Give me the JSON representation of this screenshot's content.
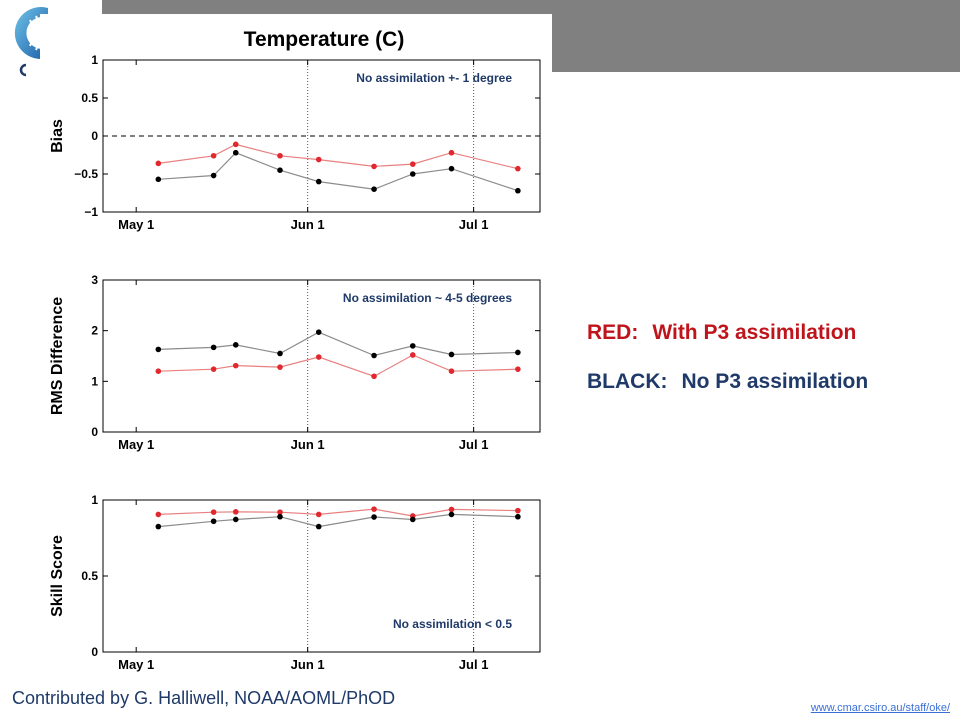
{
  "figure_title": "Temperature (C)",
  "legend": {
    "red_key": "RED:",
    "red_text": "With P3 assimilation",
    "black_key": "BLACK:",
    "black_text": "No P3 assimilation"
  },
  "credit": "Contributed by G. Halliwell, NOAA/AOML/PhOD",
  "url": "www.cmar.csiro.au/staff/oke/",
  "colors": {
    "red_series": "#e0282e",
    "black_series": "#000000",
    "red_line": "#e88080",
    "black_line": "#8c8c8c",
    "legend_red": "#c0141b",
    "legend_blue": "#1f3a68",
    "header_gray": "#808080"
  },
  "chart_data": [
    {
      "type": "line",
      "panel": "bias",
      "title": "Temperature (C)",
      "ylabel": "Bias",
      "annotation": "No assimilation +- 1 degree",
      "ylim": [
        -1,
        1
      ],
      "yticks": [
        1,
        0.5,
        0,
        -0.5,
        -1
      ],
      "ytick_labels": [
        "1",
        "0.5",
        "0",
        "−0.5",
        "−1"
      ],
      "xlim": [
        "2013-04-25",
        "2013-07-13"
      ],
      "xticks": [
        "2013-05-01",
        "2013-06-01",
        "2013-07-01"
      ],
      "xtick_labels": [
        "May 1",
        "Jun 1",
        "Jul 1"
      ],
      "vlines": [
        "2013-06-01",
        "2013-07-01"
      ],
      "hline": 0,
      "series": [
        {
          "name": "RED",
          "color": "#e0282e",
          "x": [
            "2013-05-05",
            "2013-05-15",
            "2013-05-19",
            "2013-05-27",
            "2013-06-03",
            "2013-06-13",
            "2013-06-20",
            "2013-06-27",
            "2013-07-09"
          ],
          "y": [
            -0.36,
            -0.26,
            -0.11,
            -0.26,
            -0.31,
            -0.4,
            -0.37,
            -0.22,
            -0.43
          ]
        },
        {
          "name": "BLACK",
          "color": "#000000",
          "x": [
            "2013-05-05",
            "2013-05-15",
            "2013-05-19",
            "2013-05-27",
            "2013-06-03",
            "2013-06-13",
            "2013-06-20",
            "2013-06-27",
            "2013-07-09"
          ],
          "y": [
            -0.57,
            -0.52,
            -0.22,
            -0.45,
            -0.6,
            -0.7,
            -0.5,
            -0.43,
            -0.72
          ]
        }
      ]
    },
    {
      "type": "line",
      "panel": "rms",
      "ylabel": "RMS Difference",
      "annotation": "No assimilation ~ 4-5 degrees",
      "ylim": [
        0,
        3
      ],
      "yticks": [
        3,
        2,
        1,
        0
      ],
      "ytick_labels": [
        "3",
        "2",
        "1",
        "0"
      ],
      "xlim": [
        "2013-04-25",
        "2013-07-13"
      ],
      "xticks": [
        "2013-05-01",
        "2013-06-01",
        "2013-07-01"
      ],
      "xtick_labels": [
        "May 1",
        "Jun 1",
        "Jul 1"
      ],
      "vlines": [
        "2013-06-01",
        "2013-07-01"
      ],
      "series": [
        {
          "name": "RED",
          "color": "#e0282e",
          "x": [
            "2013-05-05",
            "2013-05-15",
            "2013-05-19",
            "2013-05-27",
            "2013-06-03",
            "2013-06-13",
            "2013-06-20",
            "2013-06-27",
            "2013-07-09"
          ],
          "y": [
            1.2,
            1.24,
            1.31,
            1.28,
            1.48,
            1.1,
            1.52,
            1.2,
            1.24
          ]
        },
        {
          "name": "BLACK",
          "color": "#000000",
          "x": [
            "2013-05-05",
            "2013-05-15",
            "2013-05-19",
            "2013-05-27",
            "2013-06-03",
            "2013-06-13",
            "2013-06-20",
            "2013-06-27",
            "2013-07-09"
          ],
          "y": [
            1.63,
            1.67,
            1.72,
            1.55,
            1.97,
            1.51,
            1.7,
            1.53,
            1.57
          ]
        }
      ]
    },
    {
      "type": "line",
      "panel": "skill",
      "ylabel": "Skill Score",
      "annotation": "No assimilation < 0.5",
      "ylim": [
        0,
        1
      ],
      "yticks": [
        1,
        0.5,
        0
      ],
      "ytick_labels": [
        "1",
        "0.5",
        "0"
      ],
      "xlim": [
        "2013-04-25",
        "2013-07-13"
      ],
      "xticks": [
        "2013-05-01",
        "2013-06-01",
        "2013-07-01"
      ],
      "xtick_labels": [
        "May 1",
        "Jun 1",
        "Jul 1"
      ],
      "vlines": [
        "2013-06-01",
        "2013-07-01"
      ],
      "series": [
        {
          "name": "RED",
          "color": "#e0282e",
          "x": [
            "2013-05-05",
            "2013-05-15",
            "2013-05-19",
            "2013-05-27",
            "2013-06-03",
            "2013-06-13",
            "2013-06-20",
            "2013-06-27",
            "2013-07-09"
          ],
          "y": [
            0.905,
            0.92,
            0.922,
            0.92,
            0.905,
            0.94,
            0.895,
            0.938,
            0.93
          ]
        },
        {
          "name": "BLACK",
          "color": "#000000",
          "x": [
            "2013-05-05",
            "2013-05-15",
            "2013-05-19",
            "2013-05-27",
            "2013-06-03",
            "2013-06-13",
            "2013-06-20",
            "2013-06-27",
            "2013-07-09"
          ],
          "y": [
            0.825,
            0.86,
            0.872,
            0.89,
            0.825,
            0.888,
            0.872,
            0.905,
            0.89
          ]
        }
      ]
    }
  ]
}
